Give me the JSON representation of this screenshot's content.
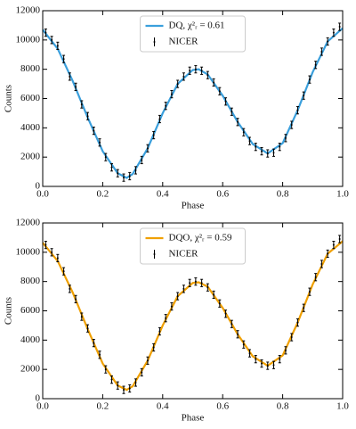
{
  "chart_data": [
    {
      "type": "line",
      "x_label": "Phase",
      "y_label": "Counts",
      "legend": "upper center",
      "xlim": [
        0,
        1
      ],
      "ylim": [
        0,
        12000
      ],
      "xticks": [
        {
          "value": 0,
          "label": "0.0"
        },
        0.2,
        0.4,
        0.6,
        0.8,
        {
          "value": 1,
          "label": "1.0"
        }
      ],
      "yticks": [
        0,
        2000,
        4000,
        6000,
        8000,
        10000,
        12000
      ],
      "series": [
        {
          "name": "DQ, χ²ᵣ = 0.61",
          "color": "#3a9fdc",
          "x": [
            0,
            0.05,
            0.1,
            0.15,
            0.2,
            0.25,
            0.28,
            0.3,
            0.35,
            0.4,
            0.45,
            0.5,
            0.52,
            0.55,
            0.6,
            0.65,
            0.7,
            0.75,
            0.8,
            0.85,
            0.9,
            0.95,
            1
          ],
          "values": [
            10700,
            9400,
            7200,
            4700,
            2400,
            900,
            580,
            850,
            2600,
            5000,
            7000,
            7950,
            8000,
            7650,
            6200,
            4400,
            2900,
            2250,
            2950,
            5200,
            7800,
            9900,
            10800
          ]
        },
        {
          "name": "NICER",
          "color": "#000000",
          "error": 250,
          "x": [
            0.01,
            0.03,
            0.05,
            0.07,
            0.09,
            0.11,
            0.13,
            0.15,
            0.17,
            0.19,
            0.21,
            0.23,
            0.25,
            0.27,
            0.29,
            0.31,
            0.33,
            0.35,
            0.37,
            0.39,
            0.41,
            0.43,
            0.45,
            0.47,
            0.49,
            0.51,
            0.53,
            0.55,
            0.57,
            0.59,
            0.61,
            0.63,
            0.65,
            0.67,
            0.69,
            0.71,
            0.73,
            0.75,
            0.77,
            0.79,
            0.81,
            0.83,
            0.85,
            0.87,
            0.89,
            0.91,
            0.93,
            0.95,
            0.97,
            0.99
          ],
          "values": [
            10500,
            10000,
            9600,
            8700,
            7500,
            6800,
            5600,
            4800,
            3800,
            3000,
            2000,
            1300,
            900,
            600,
            700,
            1100,
            1800,
            2600,
            3500,
            4600,
            5500,
            6300,
            7000,
            7500,
            7900,
            8000,
            7900,
            7600,
            7100,
            6500,
            5800,
            5100,
            4400,
            3700,
            3100,
            2700,
            2400,
            2250,
            2300,
            2700,
            3300,
            4200,
            5200,
            6200,
            7300,
            8300,
            9200,
            9900,
            10500,
            10900
          ]
        }
      ]
    },
    {
      "type": "line",
      "x_label": "Phase",
      "y_label": "Counts",
      "legend": "upper center",
      "xlim": [
        0,
        1
      ],
      "ylim": [
        0,
        12000
      ],
      "xticks": [
        {
          "value": 0,
          "label": "0.0"
        },
        0.2,
        0.4,
        0.6,
        0.8,
        {
          "value": 1,
          "label": "1.0"
        }
      ],
      "yticks": [
        0,
        2000,
        4000,
        6000,
        8000,
        10000,
        12000
      ],
      "series": [
        {
          "name": "DQO, χ²ᵣ = 0.59",
          "color": "#f0a000",
          "x": [
            0,
            0.05,
            0.1,
            0.15,
            0.2,
            0.25,
            0.28,
            0.3,
            0.35,
            0.4,
            0.45,
            0.5,
            0.52,
            0.55,
            0.6,
            0.65,
            0.7,
            0.75,
            0.8,
            0.85,
            0.9,
            0.95,
            1
          ],
          "values": [
            10650,
            9400,
            7250,
            4750,
            2400,
            900,
            600,
            850,
            2600,
            5000,
            7000,
            7900,
            7950,
            7650,
            6200,
            4400,
            2900,
            2250,
            2950,
            5200,
            7800,
            9900,
            10750
          ]
        },
        {
          "name": "NICER",
          "color": "#000000",
          "error": 250,
          "x": [
            0.01,
            0.03,
            0.05,
            0.07,
            0.09,
            0.11,
            0.13,
            0.15,
            0.17,
            0.19,
            0.21,
            0.23,
            0.25,
            0.27,
            0.29,
            0.31,
            0.33,
            0.35,
            0.37,
            0.39,
            0.41,
            0.43,
            0.45,
            0.47,
            0.49,
            0.51,
            0.53,
            0.55,
            0.57,
            0.59,
            0.61,
            0.63,
            0.65,
            0.67,
            0.69,
            0.71,
            0.73,
            0.75,
            0.77,
            0.79,
            0.81,
            0.83,
            0.85,
            0.87,
            0.89,
            0.91,
            0.93,
            0.95,
            0.97,
            0.99
          ],
          "values": [
            10500,
            10000,
            9600,
            8700,
            7500,
            6800,
            5600,
            4800,
            3800,
            3000,
            2000,
            1300,
            900,
            600,
            700,
            1100,
            1800,
            2600,
            3500,
            4600,
            5500,
            6300,
            7000,
            7500,
            7900,
            8000,
            7900,
            7600,
            7100,
            6500,
            5800,
            5100,
            4400,
            3700,
            3100,
            2700,
            2400,
            2250,
            2300,
            2700,
            3300,
            4200,
            5200,
            6200,
            7300,
            8300,
            9200,
            9900,
            10500,
            10900
          ]
        }
      ]
    }
  ]
}
